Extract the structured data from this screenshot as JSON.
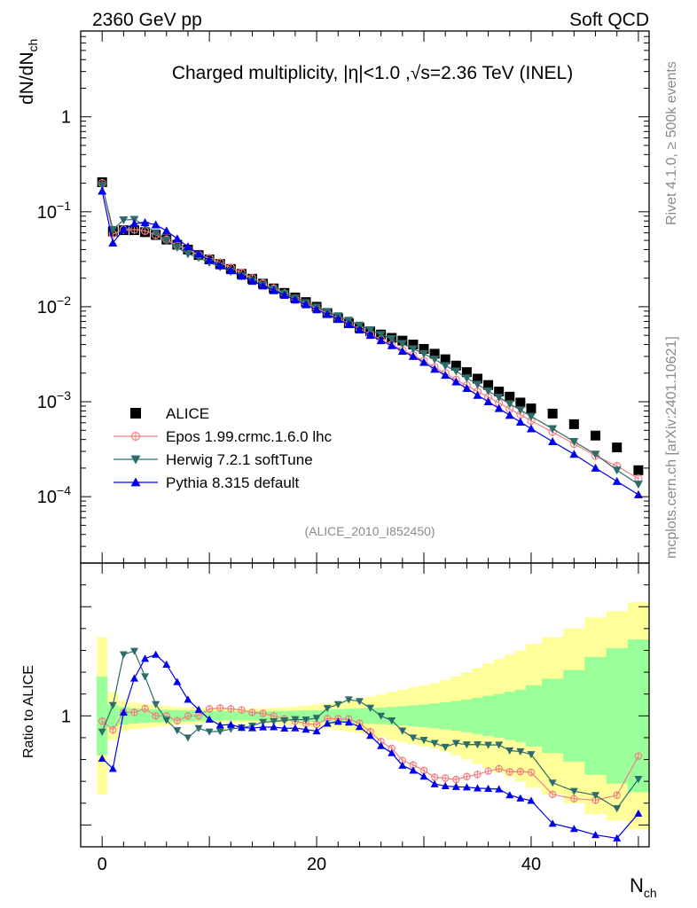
{
  "header": {
    "left": "2360 GeV pp",
    "right": "Soft QCD"
  },
  "side": {
    "top": "Rivet 4.1.0, ≥ 500k events",
    "bottom": "mcplots.cern.ch [arXiv:2401.10621]"
  },
  "chart_data": {
    "type": "scatter",
    "title": "Charged multiplicity, |η|<1.0 ,√s=2.36 TeV (INEL)",
    "analysis": "(ALICE_2010_I852450)",
    "xlabel": "N",
    "xlabel_sub": "ch",
    "ylabel": "dN/dN",
    "ylabel_sub": "ch",
    "ratio_ylabel": "Ratio to ALICE",
    "xlim": [
      -2,
      51
    ],
    "ylim": [
      2e-05,
      8
    ],
    "ratio_ylim": [
      0.4,
      1.7
    ],
    "xticks": [
      0,
      20,
      40
    ],
    "ratio_ytick_label": "1",
    "ytick_labels": [
      {
        "value": 1,
        "base": "1",
        "exp": ""
      },
      {
        "value": 0.1,
        "base": "10",
        "exp": "−1"
      },
      {
        "value": 0.01,
        "base": "10",
        "exp": "−2"
      },
      {
        "value": 0.001,
        "base": "10",
        "exp": "−3"
      },
      {
        "value": 0.0001,
        "base": "10",
        "exp": "−4"
      }
    ],
    "series": [
      {
        "name": "ALICE",
        "color": "#000000",
        "marker": "square",
        "x": [
          0,
          1,
          2,
          3,
          4,
          5,
          6,
          7,
          8,
          9,
          10,
          11,
          12,
          13,
          14,
          15,
          16,
          17,
          18,
          19,
          20,
          21,
          22,
          23,
          24,
          25,
          26,
          27,
          28,
          29,
          30,
          31,
          32,
          33,
          34,
          35,
          36,
          37,
          38,
          39,
          40,
          42,
          44,
          46,
          48,
          50
        ],
        "y": [
          0.205,
          0.062,
          0.064,
          0.064,
          0.061,
          0.057,
          0.051,
          0.045,
          0.04,
          0.035,
          0.0315,
          0.0282,
          0.025,
          0.0222,
          0.0197,
          0.0175,
          0.0156,
          0.014,
          0.0125,
          0.0112,
          0.01,
          0.0086,
          0.0076,
          0.0067,
          0.006,
          0.0055,
          0.0051,
          0.0047,
          0.0044,
          0.004,
          0.0036,
          0.0032,
          0.0028,
          0.0024,
          0.00205,
          0.00175,
          0.0015,
          0.00128,
          0.00113,
          0.00098,
          0.00085,
          0.00075,
          0.00058,
          0.00044,
          0.00033,
          0.00019
        ]
      },
      {
        "name": "Epos 1.99.crmc.1.6.0 lhc",
        "color": "#f08080",
        "marker": "circle",
        "x": [
          0,
          1,
          2,
          3,
          4,
          5,
          6,
          7,
          8,
          9,
          10,
          11,
          12,
          13,
          14,
          15,
          16,
          17,
          18,
          19,
          20,
          21,
          22,
          23,
          24,
          25,
          26,
          27,
          28,
          29,
          30,
          31,
          32,
          33,
          34,
          35,
          36,
          37,
          38,
          39,
          40,
          42,
          44,
          46,
          48,
          50
        ],
        "y": [
          0.2,
          0.058,
          0.065,
          0.065,
          0.063,
          0.057,
          0.051,
          0.044,
          0.04,
          0.035,
          0.0325,
          0.0292,
          0.0258,
          0.0228,
          0.02,
          0.0177,
          0.0156,
          0.0138,
          0.0122,
          0.0108,
          0.0096,
          0.0085,
          0.0075,
          0.0066,
          0.0058,
          0.0051,
          0.0045,
          0.004,
          0.0035,
          0.0031,
          0.0027,
          0.0023,
          0.002,
          0.0017,
          0.00148,
          0.00128,
          0.00112,
          0.00097,
          0.00084,
          0.00073,
          0.00063,
          0.00048,
          0.00036,
          0.00027,
          0.00021,
          0.000155
        ]
      },
      {
        "name": "Herwig 7.2.1 softTune",
        "color": "#2e6b6b",
        "marker": "triangle-down",
        "x": [
          0,
          1,
          2,
          3,
          4,
          5,
          6,
          7,
          8,
          9,
          10,
          11,
          12,
          13,
          14,
          15,
          16,
          17,
          18,
          19,
          20,
          21,
          22,
          23,
          24,
          25,
          26,
          27,
          28,
          29,
          30,
          31,
          32,
          33,
          34,
          35,
          36,
          37,
          38,
          39,
          40,
          42,
          44,
          46,
          48,
          50
        ],
        "y": [
          0.19,
          0.065,
          0.082,
          0.083,
          0.072,
          0.06,
          0.05,
          0.042,
          0.036,
          0.033,
          0.0292,
          0.0262,
          0.0235,
          0.021,
          0.0188,
          0.017,
          0.0152,
          0.0137,
          0.0123,
          0.011,
          0.0099,
          0.0089,
          0.008,
          0.0072,
          0.0064,
          0.0057,
          0.0051,
          0.0046,
          0.0041,
          0.0036,
          0.0032,
          0.0028,
          0.0024,
          0.0021,
          0.00178,
          0.00152,
          0.0013,
          0.00111,
          0.00095,
          0.00082,
          0.0007,
          0.00052,
          0.00038,
          0.00028,
          0.00019,
          0.000135
        ]
      },
      {
        "name": "Pythia 8.315 default",
        "color": "#0000ee",
        "marker": "triangle-up",
        "x": [
          0,
          1,
          2,
          3,
          4,
          5,
          6,
          7,
          8,
          9,
          10,
          11,
          12,
          13,
          14,
          15,
          16,
          17,
          18,
          19,
          20,
          21,
          22,
          23,
          24,
          25,
          26,
          27,
          28,
          29,
          30,
          31,
          32,
          33,
          34,
          35,
          36,
          37,
          38,
          39,
          40,
          42,
          44,
          46,
          48,
          50
        ],
        "y": [
          0.165,
          0.047,
          0.065,
          0.075,
          0.077,
          0.073,
          0.063,
          0.052,
          0.043,
          0.036,
          0.031,
          0.027,
          0.024,
          0.021,
          0.0186,
          0.0166,
          0.0148,
          0.0132,
          0.0118,
          0.0105,
          0.0093,
          0.0083,
          0.0074,
          0.0065,
          0.0057,
          0.005,
          0.0044,
          0.0039,
          0.0034,
          0.003,
          0.0026,
          0.0022,
          0.0019,
          0.00162,
          0.00138,
          0.00117,
          0.001,
          0.00085,
          0.00072,
          0.00061,
          0.00052,
          0.00038,
          0.00028,
          0.0002,
          0.000145,
          0.000105
        ]
      }
    ],
    "ratio_band": {
      "edges": [
        -0.5,
        0.5,
        1.5,
        2.5,
        3.5,
        4.5,
        5.5,
        6.5,
        7.5,
        8.5,
        9.5,
        10.5,
        11.5,
        12.5,
        13.5,
        14.5,
        15.5,
        16.5,
        17.5,
        18.5,
        19.5,
        20.5,
        21.5,
        22.5,
        23.5,
        24.5,
        25.5,
        26.5,
        27.5,
        28.5,
        29.5,
        30.5,
        31.5,
        32.5,
        33.5,
        34.5,
        35.5,
        36.5,
        37.5,
        38.5,
        39.5,
        41,
        43,
        45,
        47,
        49,
        51
      ],
      "stat": [
        0.18,
        0.05,
        0.04,
        0.035,
        0.032,
        0.03,
        0.028,
        0.026,
        0.025,
        0.024,
        0.023,
        0.022,
        0.021,
        0.021,
        0.021,
        0.021,
        0.022,
        0.023,
        0.024,
        0.025,
        0.026,
        0.028,
        0.03,
        0.032,
        0.034,
        0.036,
        0.038,
        0.041,
        0.044,
        0.048,
        0.052,
        0.057,
        0.062,
        0.068,
        0.075,
        0.083,
        0.092,
        0.1,
        0.11,
        0.12,
        0.14,
        0.17,
        0.21,
        0.27,
        0.31,
        0.35
      ],
      "total": [
        0.36,
        0.11,
        0.07,
        0.06,
        0.055,
        0.05,
        0.045,
        0.04,
        0.038,
        0.036,
        0.035,
        0.034,
        0.033,
        0.033,
        0.034,
        0.035,
        0.037,
        0.04,
        0.043,
        0.047,
        0.052,
        0.058,
        0.065,
        0.072,
        0.08,
        0.088,
        0.097,
        0.11,
        0.12,
        0.13,
        0.14,
        0.15,
        0.165,
        0.18,
        0.2,
        0.22,
        0.24,
        0.26,
        0.28,
        0.3,
        0.33,
        0.36,
        0.4,
        0.45,
        0.48,
        0.52
      ],
      "stat_color": "#99ff99",
      "total_color": "#ffff99"
    }
  }
}
